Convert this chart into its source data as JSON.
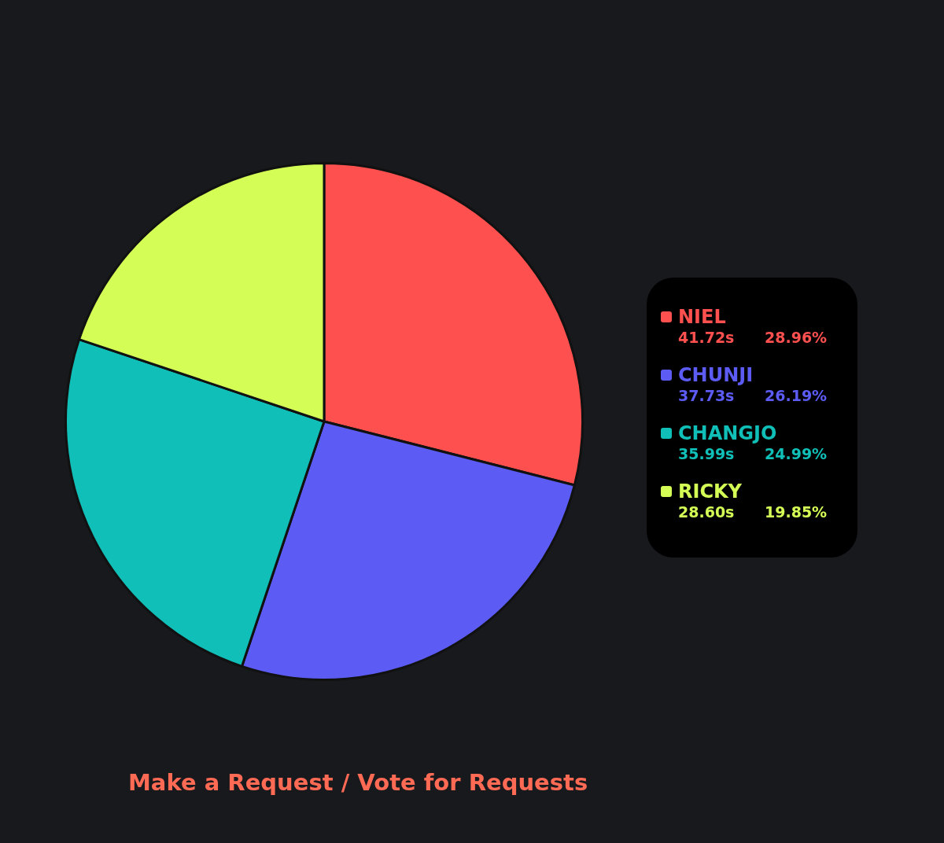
{
  "chart_data": {
    "type": "pie",
    "categories": [
      "NIEL",
      "CHUNJI",
      "CHANGJO",
      "RICKY"
    ],
    "values": [
      28.96,
      26.19,
      24.99,
      19.85
    ],
    "value_labels": [
      "41.72s 28.96%",
      "37.73s 26.19%",
      "35.99s 24.99%",
      "28.60s 19.85%"
    ],
    "colors": [
      "#ff5050",
      "#5c5cf5",
      "#10c0b8",
      "#d4fe55"
    ],
    "legend": "right",
    "annotations": [
      "Make a Request / Vote for Requests"
    ]
  }
}
